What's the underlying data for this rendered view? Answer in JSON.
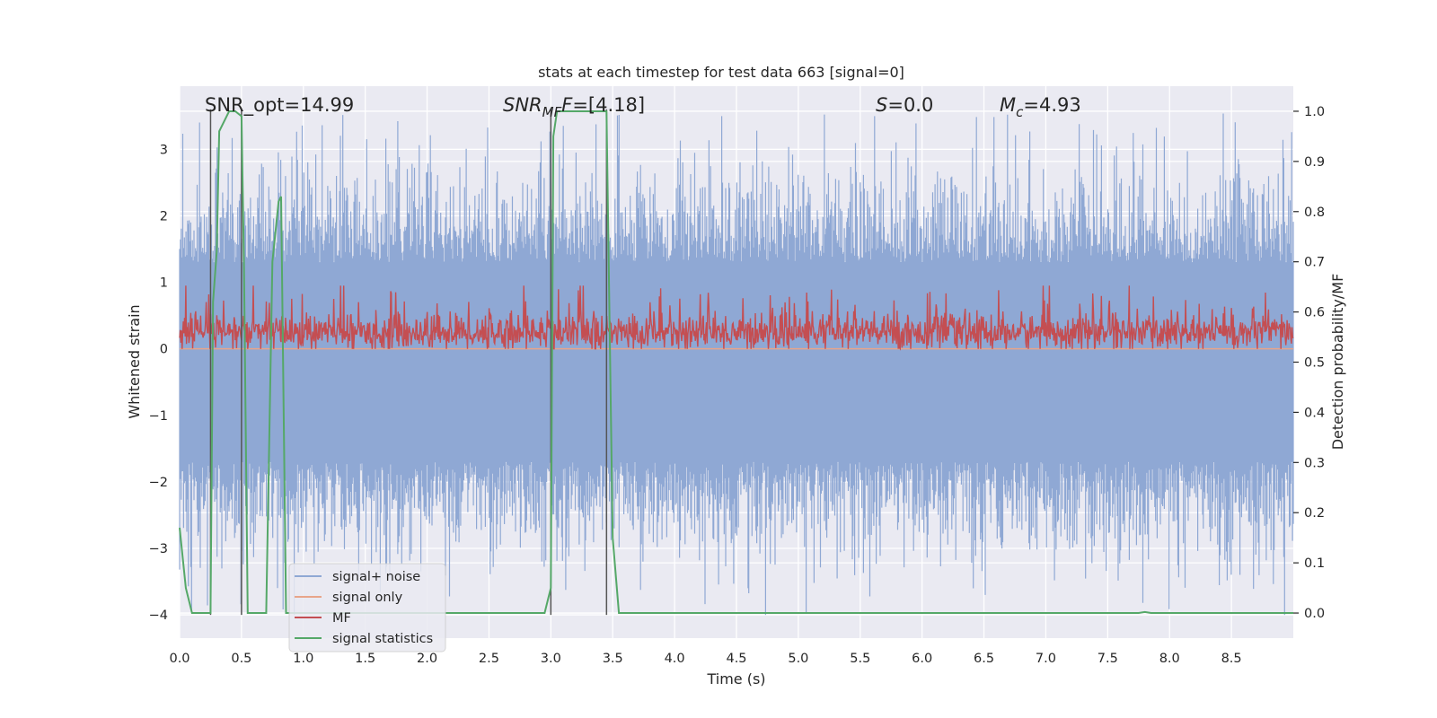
{
  "chart_data": {
    "type": "line",
    "title": "stats at each timestep for test data 663 [signal=0]",
    "xlabel": "Time (s)",
    "ylabel_left": "Whitened strain",
    "ylabel_right": "Detection probability/MF",
    "xlim": [
      0.0,
      9.0
    ],
    "ylim_left": [
      -4.35,
      3.95
    ],
    "ylim_right": [
      -0.05,
      1.05
    ],
    "x_ticks": [
      "0.0",
      "0.5",
      "1.0",
      "1.5",
      "2.0",
      "2.5",
      "3.0",
      "3.5",
      "4.0",
      "4.5",
      "5.0",
      "5.5",
      "6.0",
      "6.5",
      "7.0",
      "7.5",
      "8.0",
      "8.5"
    ],
    "y_left_ticks": [
      3,
      2,
      1,
      0,
      -1,
      -2,
      -3,
      -4
    ],
    "y_left_tick_labels": [
      "3",
      "2",
      "1",
      "0",
      "−1",
      "−2",
      "−3",
      "−4"
    ],
    "y_right_ticks": [
      "1.0",
      "0.9",
      "0.8",
      "0.7",
      "0.6",
      "0.5",
      "0.4",
      "0.3",
      "0.2",
      "0.1",
      "0.0"
    ],
    "grid": true,
    "legend_placement": "lower-left",
    "annotations": {
      "snr_opt": "SNR_opt=14.99",
      "snr_mf_main": "SNR",
      "snr_mf_sub": "MF",
      "snr_mf_value": "=[4.18]",
      "s_main": "S",
      "s_value": "=0.0",
      "mc_main": "M",
      "mc_sub": "c",
      "mc_value": "=4.93"
    },
    "vertical_markers": [
      0.25,
      0.5,
      3.0,
      3.45
    ],
    "series": [
      {
        "name": "signal+ noise",
        "color": "#8fa8d4",
        "description_values": {
          "band_high": 1.3,
          "band_low": -1.7,
          "peak_max": 3.55,
          "peak_min": -4.0
        }
      },
      {
        "name": "signal only",
        "color": "#e8a58a",
        "values_constant": 0.0
      },
      {
        "name": "MF",
        "color": "#c44e52",
        "description_values": {
          "center": 0.25,
          "range": [
            0.0,
            0.95
          ]
        }
      },
      {
        "name": "signal statistics",
        "color": "#55a868",
        "x": [
          0.0,
          0.05,
          0.1,
          0.25,
          0.27,
          0.3,
          0.32,
          0.4,
          0.45,
          0.5,
          0.52,
          0.55,
          0.6,
          0.65,
          0.7,
          0.75,
          0.8,
          0.82,
          0.86,
          2.95,
          3.0,
          3.02,
          3.05,
          3.1,
          3.4,
          3.45,
          3.5,
          3.55,
          7.75,
          7.8,
          7.85,
          9.0
        ],
        "y": [
          0.17,
          0.05,
          0.0,
          0.0,
          0.62,
          0.72,
          0.96,
          1.0,
          1.0,
          0.99,
          0.7,
          0.0,
          0.0,
          0.0,
          0.0,
          0.7,
          0.82,
          0.83,
          0.0,
          0.0,
          0.05,
          0.95,
          1.0,
          1.0,
          1.0,
          1.0,
          0.15,
          0.0,
          0.0,
          0.002,
          0.0,
          0.0
        ]
      }
    ]
  }
}
